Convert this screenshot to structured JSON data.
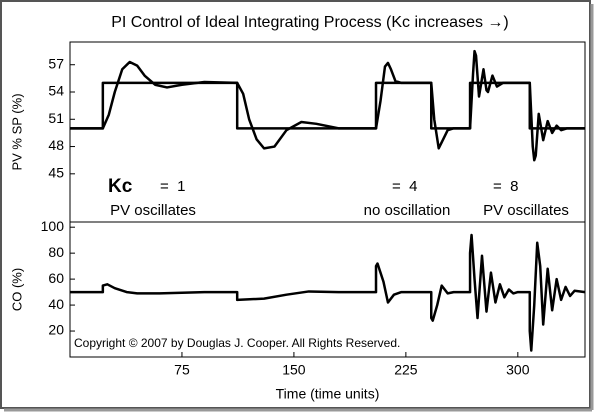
{
  "chart_data": [
    {
      "type": "line",
      "title": "PI Control of Ideal Integrating Process (Kc increases →)",
      "ylabel": "PV % SP (%)",
      "annotations": [
        "Kc",
        "=  1",
        "PV oscillates",
        "=  4",
        "no oscillation",
        "=  8",
        "PV oscillates"
      ],
      "xlim": [
        0,
        345
      ],
      "ylim": [
        39.7,
        59.5
      ],
      "yticks": [
        45,
        48,
        51,
        54,
        57
      ],
      "series": [
        {
          "color": "#000000",
          "x": [
            0,
            22,
            22,
            112,
            112,
            205,
            205,
            242,
            242,
            268,
            268,
            308,
            308,
            345
          ],
          "values": [
            50,
            50,
            55,
            55,
            50,
            50,
            55,
            55,
            50,
            50,
            55,
            55,
            50,
            50
          ]
        },
        {
          "color": "#000000",
          "x": [
            0,
            22,
            26,
            30,
            35,
            40,
            45,
            50,
            57,
            65,
            75,
            90,
            112,
            116,
            120,
            125,
            130,
            137,
            145,
            155,
            165,
            180,
            205,
            208,
            211,
            213,
            215,
            218,
            222,
            242,
            244,
            247,
            250,
            253,
            257,
            268,
            270,
            271,
            272,
            274,
            276,
            277,
            279,
            280,
            283,
            286,
            290,
            308,
            310,
            311,
            312,
            314,
            317,
            320,
            323,
            326,
            329,
            333,
            345
          ],
          "values": [
            50,
            50,
            51.5,
            54,
            56.5,
            57.3,
            56.9,
            55.8,
            54.8,
            54.5,
            54.8,
            55.1,
            55,
            53.8,
            51,
            48.8,
            47.8,
            48,
            49.8,
            50.7,
            50.5,
            50,
            50,
            53,
            56.8,
            57.2,
            56.5,
            55.2,
            55,
            55,
            51,
            47.8,
            48.8,
            49.8,
            50,
            50,
            56,
            58.5,
            58,
            53.5,
            55.5,
            56.5,
            54.2,
            54,
            55.8,
            54.6,
            55,
            55,
            48,
            46.5,
            47,
            51.6,
            48.7,
            50.8,
            49.5,
            50.3,
            49.8,
            50,
            50
          ]
        }
      ]
    },
    {
      "type": "line",
      "ylabel": "CO (%)",
      "xlabel": "Time (time units)",
      "annotations": [
        "Copyright © 2007 by Douglas J. Cooper. All Rights Reserved."
      ],
      "xlim": [
        0,
        345
      ],
      "ylim": [
        0,
        104
      ],
      "yticks": [
        20,
        40,
        60,
        80,
        100
      ],
      "xticks": [
        75,
        150,
        225,
        300
      ],
      "series": [
        {
          "color": "#000000",
          "x": [
            0,
            22,
            22,
            25,
            30,
            38,
            45,
            60,
            90,
            112,
            112,
            130,
            145,
            160,
            180,
            205,
            205,
            206,
            210,
            213,
            217,
            222,
            242,
            242,
            243,
            246,
            249,
            253,
            257,
            268,
            268,
            269,
            271,
            273,
            276,
            279,
            282,
            285,
            288,
            291,
            294,
            297,
            300,
            308,
            308,
            309,
            311,
            313,
            315,
            317,
            320,
            323,
            326,
            329,
            332,
            335,
            338,
            345
          ],
          "values": [
            50,
            50,
            55,
            56,
            53,
            50,
            49,
            49,
            50,
            50,
            44,
            45,
            48,
            50.5,
            50,
            50,
            70,
            72,
            58,
            42,
            48,
            50,
            50,
            30,
            28,
            40,
            55,
            49,
            50,
            50,
            80,
            94,
            60,
            30,
            78,
            35,
            65,
            42,
            56,
            46,
            52,
            49,
            50,
            50,
            20,
            5,
            40,
            88,
            70,
            25,
            68,
            36,
            60,
            44,
            54,
            47,
            51,
            50
          ]
        }
      ]
    }
  ]
}
